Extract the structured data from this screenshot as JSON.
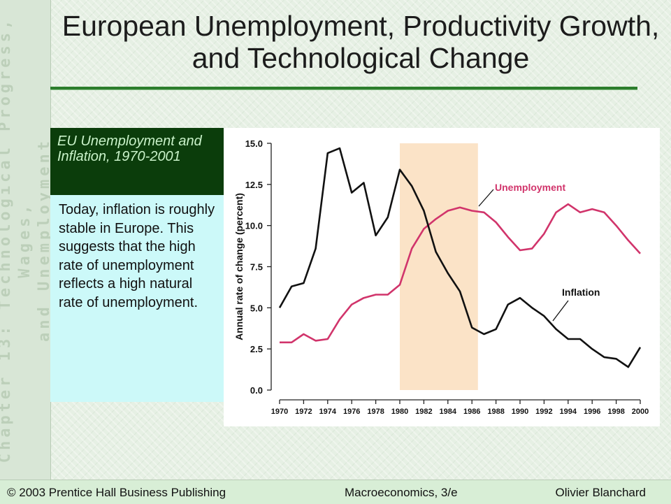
{
  "sidebar_text_lines": [
    "Chapter 13:  Technological Progress, Wages,",
    "and Unemployment"
  ],
  "slide_title": "European Unemployment, Productivity Growth, and Technological Change",
  "subtitle": "EU Unemployment and Inflation, 1970-2001",
  "body_text": "Today, inflation is roughly stable in Europe.  This suggests that the high rate of unemployment reflects a high natural rate of unemployment.",
  "footer": {
    "left": "© 2003 Prentice Hall Business Publishing",
    "center": "Macroeconomics, 3/e",
    "right": "Olivier Blanchard"
  },
  "colors": {
    "unemployment": "#d1346b",
    "inflation": "#111111",
    "shading": "#fbe3c7",
    "title_rule": "#2c7d2c"
  },
  "chart_data": {
    "type": "line",
    "title": "",
    "xlabel": "",
    "ylabel": "Annual rate of change (percent)",
    "xlim": [
      1970,
      2000
    ],
    "ylim": [
      0,
      15
    ],
    "x_ticks": [
      1970,
      1972,
      1974,
      1976,
      1978,
      1980,
      1982,
      1984,
      1986,
      1988,
      1990,
      1992,
      1994,
      1996,
      1998,
      2000
    ],
    "y_ticks": [
      "0.0",
      "2.5",
      "5.0",
      "7.5",
      "10.0",
      "12.5",
      "15.0"
    ],
    "shaded_region": [
      1980,
      1986.5
    ],
    "x": [
      1970,
      1971,
      1972,
      1973,
      1974,
      1975,
      1976,
      1977,
      1978,
      1979,
      1980,
      1981,
      1982,
      1983,
      1984,
      1985,
      1986,
      1987,
      1988,
      1989,
      1990,
      1991,
      1992,
      1993,
      1994,
      1995,
      1996,
      1997,
      1998,
      1999,
      2000
    ],
    "series": [
      {
        "name": "Unemployment",
        "values": [
          2.9,
          2.9,
          3.4,
          3.0,
          3.1,
          4.3,
          5.2,
          5.6,
          5.8,
          5.8,
          6.4,
          8.6,
          9.8,
          10.4,
          10.9,
          11.1,
          10.9,
          10.8,
          10.2,
          9.3,
          8.5,
          8.6,
          9.5,
          10.8,
          11.3,
          10.8,
          11.0,
          10.8,
          10.0,
          9.1,
          8.3
        ]
      },
      {
        "name": "Inflation",
        "values": [
          5.0,
          6.3,
          6.5,
          8.6,
          14.4,
          14.7,
          12.0,
          12.6,
          9.4,
          10.5,
          13.4,
          12.4,
          10.9,
          8.4,
          7.1,
          6.0,
          3.8,
          3.4,
          3.7,
          5.2,
          5.6,
          5.0,
          4.5,
          3.7,
          3.1,
          3.1,
          2.5,
          2.0,
          1.9,
          1.4,
          2.6
        ]
      }
    ],
    "annotations": [
      "Unemployment",
      "Inflation"
    ]
  }
}
